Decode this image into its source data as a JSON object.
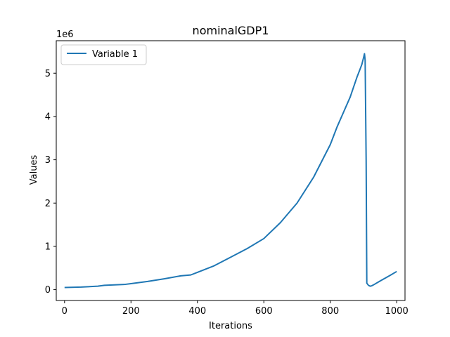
{
  "chart_data": {
    "type": "line",
    "title": "nominalGDP1",
    "xlabel": "Iterations",
    "ylabel": "Values",
    "y_offset_label": "1e6",
    "xlim": [
      -25,
      1025
    ],
    "ylim": [
      -0.25,
      5.75
    ],
    "y_scale_note": "values in units of 1e6",
    "x_ticks": [
      0,
      200,
      400,
      600,
      800,
      1000
    ],
    "x_tick_labels": [
      "0",
      "200",
      "400",
      "600",
      "800",
      "1000"
    ],
    "y_ticks": [
      0,
      1,
      2,
      3,
      4,
      5
    ],
    "y_tick_labels": [
      "0",
      "1",
      "2",
      "3",
      "4",
      "5"
    ],
    "grid": false,
    "legend_position": "top-left",
    "series": [
      {
        "name": "Variable 1",
        "color": "#1f77b4",
        "x": [
          0,
          50,
          100,
          120,
          150,
          180,
          200,
          250,
          300,
          350,
          380,
          400,
          450,
          500,
          550,
          600,
          650,
          700,
          750,
          800,
          820,
          840,
          860,
          880,
          890,
          895,
          900,
          903,
          905,
          908,
          910,
          915,
          920,
          925,
          930,
          950,
          980,
          1000
        ],
        "y": [
          0.05,
          0.06,
          0.08,
          0.1,
          0.11,
          0.12,
          0.14,
          0.19,
          0.25,
          0.32,
          0.34,
          0.4,
          0.55,
          0.75,
          0.95,
          1.18,
          1.55,
          2.0,
          2.6,
          3.35,
          3.75,
          4.1,
          4.45,
          4.9,
          5.1,
          5.2,
          5.35,
          5.45,
          5.3,
          3.0,
          0.15,
          0.1,
          0.08,
          0.09,
          0.11,
          0.2,
          0.33,
          0.42
        ]
      }
    ]
  }
}
